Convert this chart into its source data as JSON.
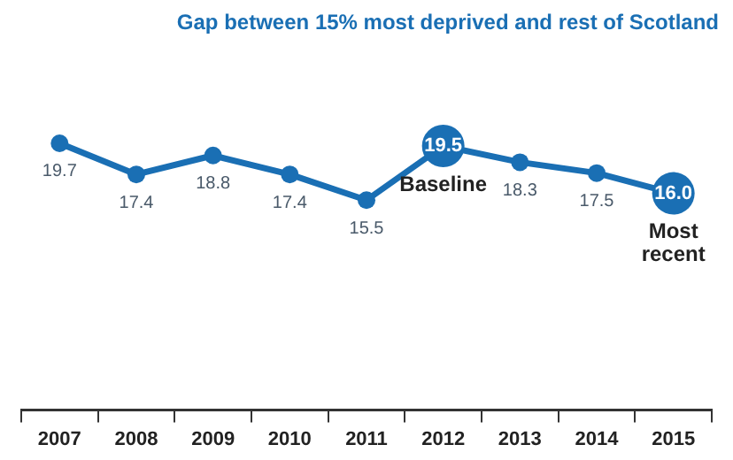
{
  "chart_data": {
    "type": "line",
    "title": "Gap between 15% most deprived and rest of Scotland",
    "categories": [
      "2007",
      "2008",
      "2009",
      "2010",
      "2011",
      "2012",
      "2013",
      "2014",
      "2015"
    ],
    "series": [
      {
        "color": "#1a6fb4",
        "values": [
          19.7,
          17.4,
          18.8,
          17.4,
          15.5,
          19.5,
          18.3,
          17.5,
          16.0
        ],
        "value_labels": [
          "19.7",
          "17.4",
          "18.8",
          "17.4",
          "15.5",
          "19.5",
          "18.3",
          "17.5",
          "16.0"
        ]
      }
    ],
    "tick_labels": "x",
    "grid": false,
    "legend": false,
    "marker": "circle",
    "line_style": "solid",
    "annotations": [
      {
        "text": "Baseline",
        "x": "2012",
        "y": 19.5
      },
      {
        "text": "Most recent",
        "x": "2015",
        "y": 16.0
      }
    ]
  }
}
